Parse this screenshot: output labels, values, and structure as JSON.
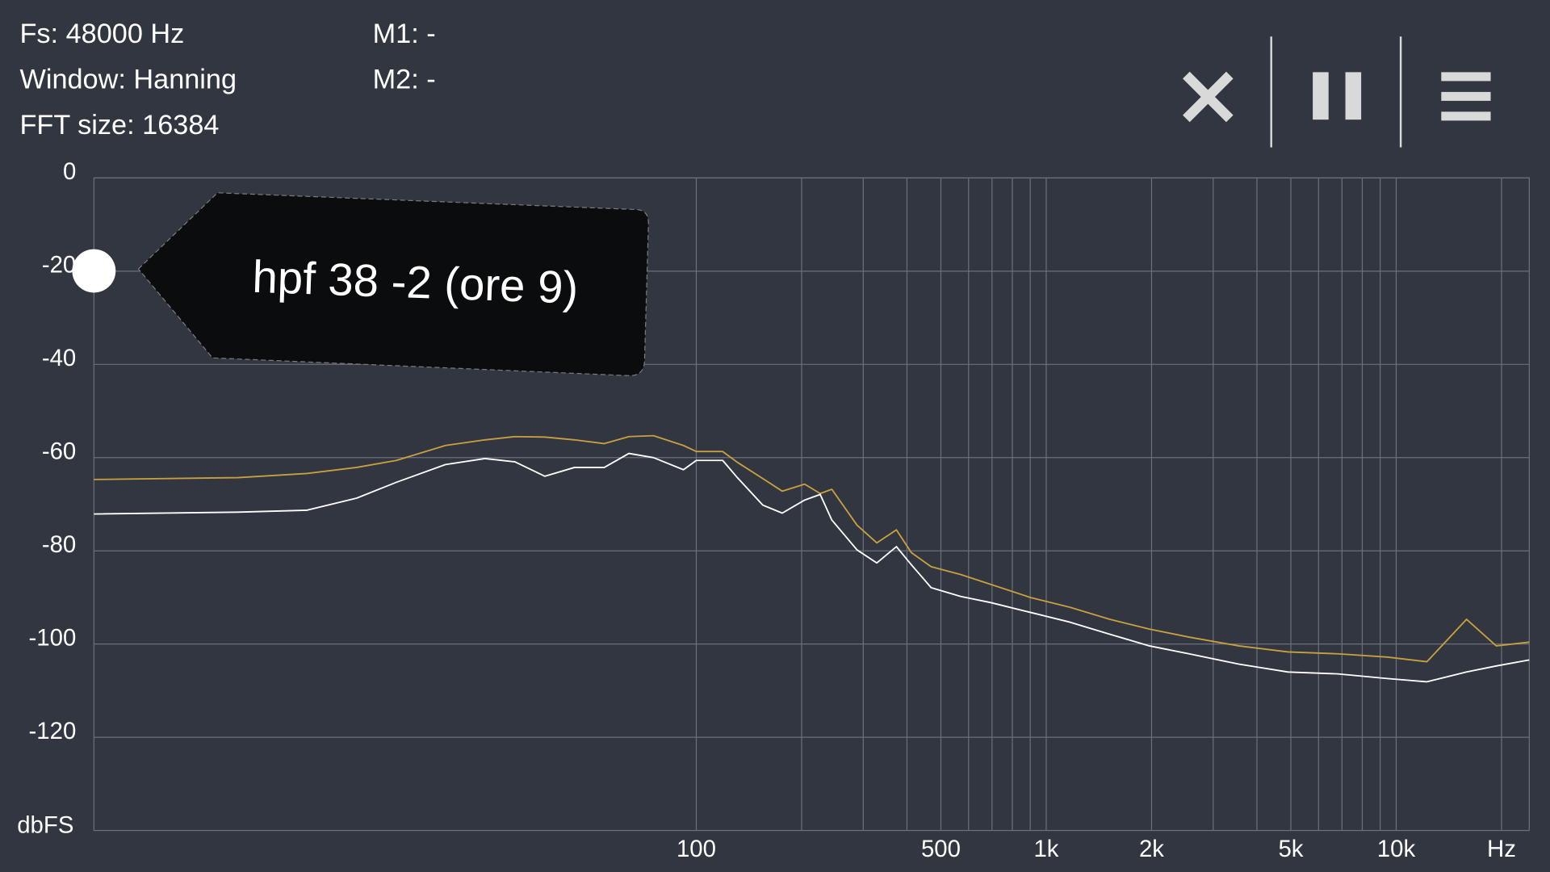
{
  "header": {
    "fs": "Fs: 48000 Hz",
    "window": "Window: Hanning",
    "fft_size": "FFT size: 16384",
    "m1": "M1: -",
    "m2": "M2: -"
  },
  "chart_data": {
    "type": "line",
    "xscale": "log",
    "grid": true,
    "x_label": "Hz",
    "y_label": "dbFS",
    "annotation": "hpf 38 -2 (ore 9)",
    "xlim": [
      1.9,
      24000
    ],
    "ylim": [
      -140,
      0
    ],
    "xticks": [
      100,
      500,
      {
        "value": 1000,
        "label": "1k"
      },
      {
        "value": 2000,
        "label": "2k"
      },
      {
        "value": 5000,
        "label": "5k"
      },
      {
        "value": 10000,
        "label": "10k"
      }
    ],
    "x_grid": [
      100,
      200,
      300,
      400,
      500,
      600,
      700,
      800,
      900,
      1000,
      2000,
      3000,
      4000,
      5000,
      6000,
      7000,
      8000,
      9000,
      10000,
      20000
    ],
    "yticks": [
      0,
      -20,
      -40,
      -60,
      -80,
      -100,
      -120
    ],
    "x": [
      1.9,
      4.9,
      7.7,
      10.7,
      13.9,
      19.2,
      24.9,
      30.3,
      36.9,
      44.9,
      54.6,
      64.2,
      75.5,
      91.9,
      100,
      119,
      131,
      155,
      176,
      204,
      226,
      244,
      288,
      328,
      373,
      412,
      469,
      570,
      694,
      901,
      1169,
      1518,
      1971,
      2558,
      3548,
      4909,
      6808,
      9425,
      12240,
      15890,
      19320,
      24000
    ],
    "series": [
      {
        "color": "#c9a040",
        "values": [
          -64.7,
          -64.3,
          -63.4,
          -62.1,
          -60.6,
          -57.4,
          -56.2,
          -55.5,
          -55.6,
          -56.2,
          -57.0,
          -55.5,
          -55.3,
          -57.4,
          -58.7,
          -58.7,
          -61.0,
          -64.5,
          -67.2,
          -65.7,
          -67.7,
          -66.8,
          -74.5,
          -78.3,
          -75.5,
          -80.4,
          -83.4,
          -85.1,
          -87.2,
          -90.0,
          -92.1,
          -94.7,
          -96.8,
          -98.5,
          -100.4,
          -101.7,
          -102.1,
          -102.8,
          -103.8,
          -94.7,
          -100.4,
          -99.6
        ]
      },
      {
        "color": "#ffffff",
        "values": [
          -72.1,
          -71.7,
          -71.3,
          -68.7,
          -65.3,
          -61.5,
          -60.2,
          -60.9,
          -64.0,
          -62.1,
          -62.1,
          -59.1,
          -60.0,
          -62.6,
          -60.6,
          -60.6,
          -64.3,
          -70.2,
          -71.9,
          -69.1,
          -67.9,
          -73.4,
          -79.8,
          -82.6,
          -79.1,
          -83.0,
          -87.9,
          -89.8,
          -91.1,
          -93.2,
          -95.3,
          -97.9,
          -100.4,
          -102.1,
          -104.3,
          -106.0,
          -106.4,
          -107.4,
          -108.1,
          -106.0,
          -104.7,
          -103.4
        ]
      }
    ]
  }
}
